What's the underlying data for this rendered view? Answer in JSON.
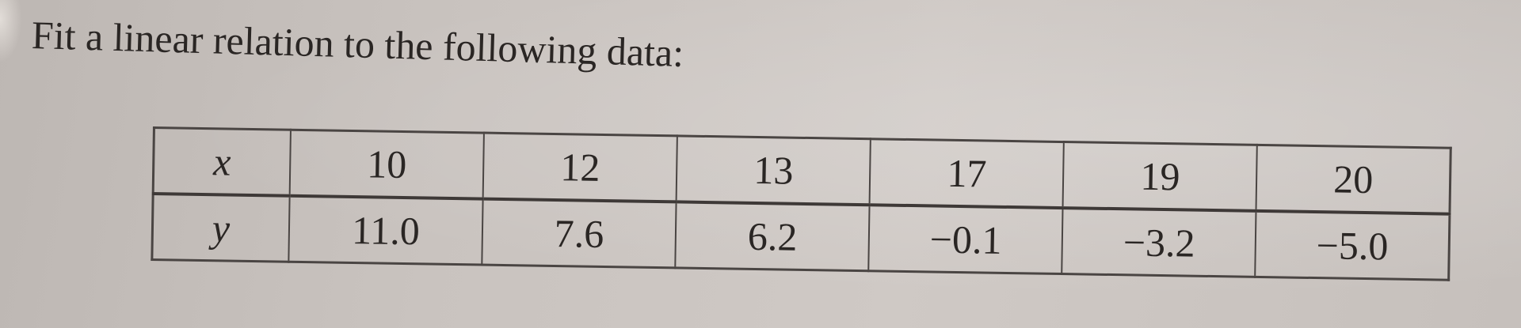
{
  "prompt": "Fit a linear relation to the following data:",
  "table": {
    "rows": [
      {
        "label": "x",
        "values": [
          "10",
          "12",
          "13",
          "17",
          "19",
          "20"
        ]
      },
      {
        "label": "y",
        "values": [
          "11.0",
          "7.6",
          "6.2",
          "−0.1",
          "−3.2",
          "−5.0"
        ]
      }
    ]
  }
}
